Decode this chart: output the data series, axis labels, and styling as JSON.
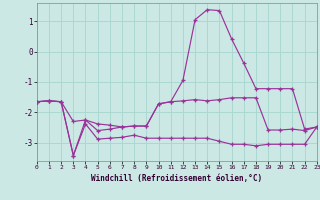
{
  "xlabel": "Windchill (Refroidissement éolien,°C)",
  "bg_color": "#cce8e4",
  "grid_color": "#aad8d0",
  "line_color": "#993399",
  "xlim": [
    0,
    23
  ],
  "ylim": [
    -3.6,
    1.6
  ],
  "xticks": [
    0,
    1,
    2,
    3,
    4,
    5,
    6,
    7,
    8,
    9,
    10,
    11,
    12,
    13,
    14,
    15,
    16,
    17,
    18,
    19,
    20,
    21,
    22,
    23
  ],
  "yticks": [
    -3,
    -2,
    -1,
    0,
    1
  ],
  "line1_x": [
    0,
    1,
    2,
    3,
    4,
    5,
    6,
    7,
    8,
    9,
    10,
    11,
    12,
    13,
    14,
    15,
    16,
    17,
    18,
    19,
    20,
    21,
    22,
    23
  ],
  "line1_y": [
    -1.65,
    -1.62,
    -1.65,
    -3.42,
    -2.25,
    -2.6,
    -2.55,
    -2.48,
    -2.45,
    -2.45,
    -1.72,
    -1.65,
    -0.95,
    1.05,
    1.38,
    1.35,
    0.42,
    -0.38,
    -1.22,
    -1.22,
    -1.22,
    -1.22,
    -2.55,
    -2.48
  ],
  "line2_x": [
    0,
    1,
    2,
    3,
    4,
    5,
    6,
    7,
    8,
    9,
    10,
    11,
    12,
    13,
    14,
    15,
    16,
    17,
    18,
    19,
    20,
    21,
    22,
    23
  ],
  "line2_y": [
    -1.65,
    -1.62,
    -1.65,
    -2.3,
    -2.25,
    -2.38,
    -2.42,
    -2.48,
    -2.45,
    -2.45,
    -1.72,
    -1.65,
    -1.62,
    -1.58,
    -1.62,
    -1.58,
    -1.52,
    -1.52,
    -1.52,
    -2.58,
    -2.58,
    -2.55,
    -2.6,
    -2.48
  ],
  "line3_x": [
    0,
    1,
    2,
    3,
    4,
    5,
    6,
    7,
    8,
    9,
    10,
    11,
    12,
    13,
    14,
    15,
    16,
    17,
    18,
    19,
    20,
    21,
    22,
    23
  ],
  "line3_y": [
    -1.65,
    -1.62,
    -1.65,
    -3.42,
    -2.38,
    -2.88,
    -2.85,
    -2.82,
    -2.75,
    -2.85,
    -2.85,
    -2.85,
    -2.85,
    -2.85,
    -2.85,
    -2.95,
    -3.05,
    -3.05,
    -3.1,
    -3.05,
    -3.05,
    -3.05,
    -3.05,
    -2.48
  ]
}
